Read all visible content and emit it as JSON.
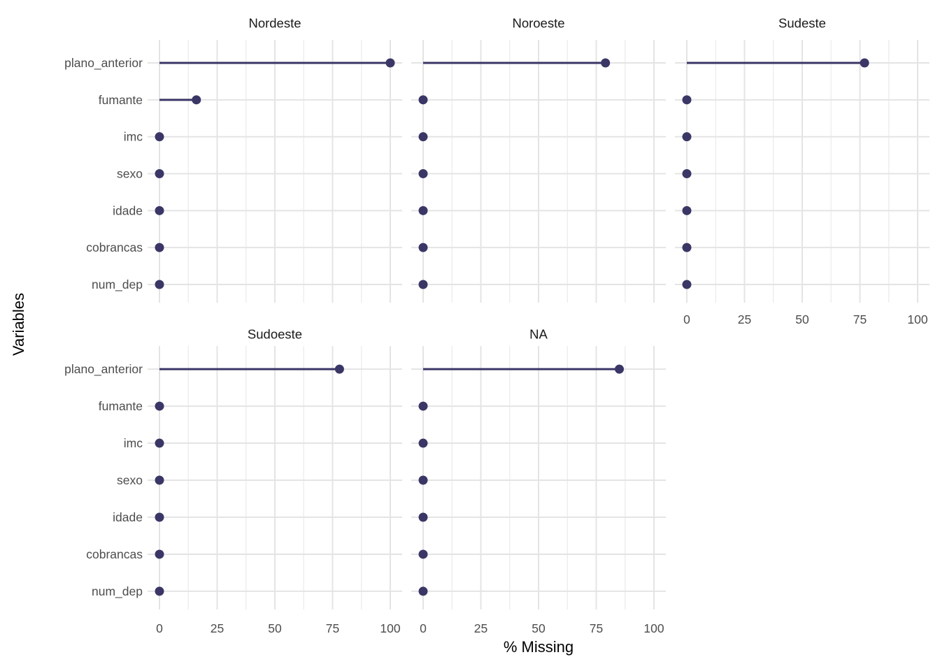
{
  "chart_data": {
    "type": "scatter",
    "variant": "faceted horizontal lollipop chart (dot with stem from 0), ggplot-style facet_wrap",
    "title": "",
    "xlabel": "% Missing",
    "ylabel": "Variables",
    "x_ticks": [
      0,
      25,
      50,
      75,
      100
    ],
    "xlim": [
      0,
      100
    ],
    "minor_grid_step": 12.5,
    "grid": "on",
    "legend": "none",
    "categories_top_to_bottom": [
      "plano_anterior",
      "fumante",
      "imc",
      "sexo",
      "idade",
      "cobrancas",
      "num_dep"
    ],
    "facets": [
      {
        "title": "Nordeste",
        "values": [
          100,
          16,
          0,
          0,
          0,
          0,
          0
        ]
      },
      {
        "title": "Noroeste",
        "values": [
          79,
          0,
          0,
          0,
          0,
          0,
          0
        ]
      },
      {
        "title": "Sudeste",
        "values": [
          77,
          0,
          0,
          0,
          0,
          0,
          0
        ]
      },
      {
        "title": "Sudoeste",
        "values": [
          78,
          0,
          0,
          0,
          0,
          0,
          0
        ]
      },
      {
        "title": "NA",
        "values": [
          85,
          0,
          0,
          0,
          0,
          0,
          0
        ]
      }
    ],
    "facet_layout": {
      "ncol": 3,
      "nrow": 2,
      "empty_cell": "row 2, column 3",
      "x_axis_shown_under": [
        "Sudeste",
        "Sudoeste",
        "NA"
      ]
    },
    "colors": {
      "point_and_stem": "#3a3666",
      "gridline_major": "#e4e4e4",
      "gridline_minor": "#eeeeee",
      "tick_label": "#4d4d4d",
      "facet_title": "#1a1a1a",
      "axis_title": "#000000",
      "background": "#ffffff"
    }
  }
}
